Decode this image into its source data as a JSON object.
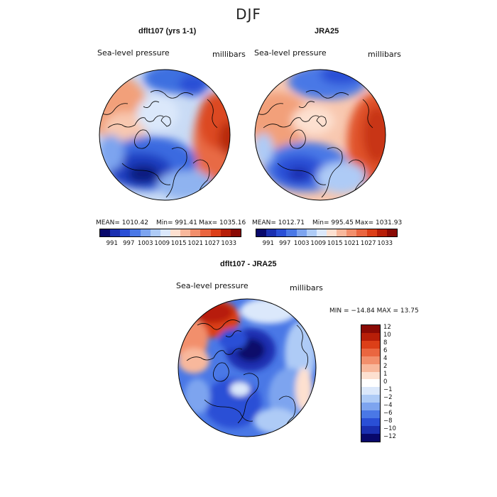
{
  "title": "DJF",
  "panels": {
    "left": {
      "title": "dflt107 (yrs 1-1)",
      "variable": "Sea-level pressure",
      "units": "millibars",
      "stats": {
        "mean": "MEAN= 1010.42",
        "min": "Min= 991.41",
        "max": "Max= 1035.16"
      }
    },
    "right": {
      "title": "JRA25",
      "variable": "Sea-level pressure",
      "units": "millibars",
      "stats": {
        "mean": "MEAN= 1012.71",
        "min": "Min= 995.45",
        "max": "Max= 1031.93"
      }
    },
    "diff": {
      "title": "dflt107 - JRA25",
      "variable": "Sea-level pressure",
      "units": "millibars",
      "minmax": "MIN = −14.84 MAX =  13.75"
    }
  },
  "colorbar_top": {
    "colors": [
      "#08086b",
      "#1a2fb0",
      "#2a4fd6",
      "#4a78e6",
      "#7da4ef",
      "#aecbf6",
      "#dbe8fb",
      "#fde0d0",
      "#f8b89c",
      "#f28f6c",
      "#ea6640",
      "#dc3f18",
      "#b71e08",
      "#8a0a05"
    ],
    "ticks": [
      "991",
      "997",
      "1003",
      "1009",
      "1015",
      "1021",
      "1027",
      "1033"
    ]
  },
  "colorbar_diff": {
    "colors": [
      "#8a0a05",
      "#b71e08",
      "#dc3f18",
      "#ea6640",
      "#f28f6c",
      "#f8b89c",
      "#fde0d0",
      "#ffffff",
      "#dbe8fb",
      "#aecbf6",
      "#7da4ef",
      "#4a78e6",
      "#2a4fd6",
      "#1a2fb0",
      "#08086b"
    ],
    "ticks": [
      "12",
      "10",
      "8",
      "6",
      "4",
      "2",
      "1",
      "0",
      "−1",
      "−2",
      "−4",
      "−6",
      "−8",
      "−10",
      "−12"
    ]
  }
}
